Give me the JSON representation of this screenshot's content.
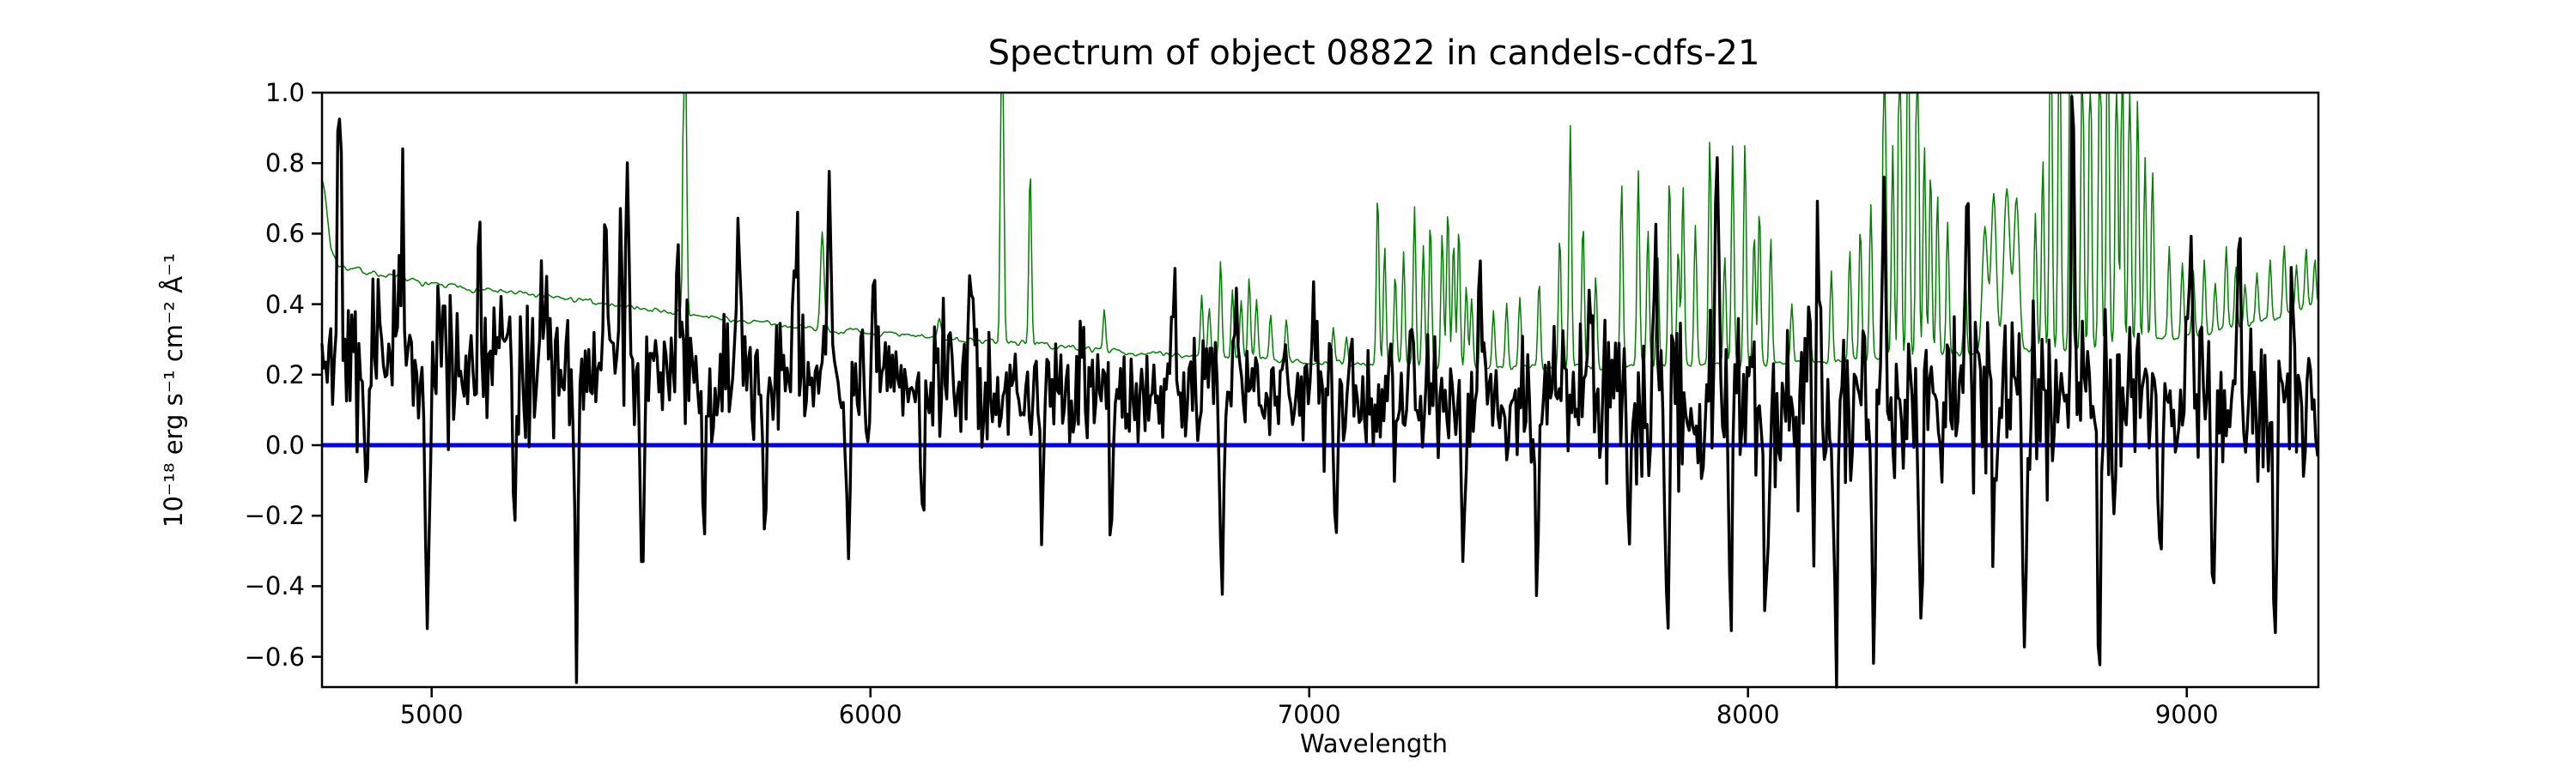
{
  "chart_data": {
    "type": "line",
    "title": "Spectrum of object 08822 in candels-cdfs-21",
    "xlabel": "Wavelength",
    "ylabel": "10⁻¹⁸ erg s⁻¹ cm⁻² Å⁻¹",
    "xlim": [
      4750,
      9300
    ],
    "ylim": [
      -0.686,
      1.0
    ],
    "xticks": [
      5000,
      6000,
      7000,
      8000,
      9000
    ],
    "yticks": [
      1.0,
      0.8,
      0.6,
      0.4,
      0.2,
      0.0,
      -0.2,
      -0.4,
      -0.6
    ],
    "grid": false,
    "legend": "none",
    "background": "#ffffff",
    "axes_color": "#000000",
    "series": [
      {
        "name": "flux-spectrum",
        "color": "#000000",
        "linewidth": 3.4,
        "step": 4,
        "seed": 42,
        "tail_chance": 0.955,
        "tail_gain": 1.9,
        "noise_gain": 1.25,
        "continuum": [
          [
            4750,
            0.27
          ],
          [
            4900,
            0.25
          ],
          [
            5100,
            0.23
          ],
          [
            5350,
            0.215
          ],
          [
            5600,
            0.2
          ],
          [
            5900,
            0.18
          ],
          [
            6200,
            0.165
          ],
          [
            6500,
            0.155
          ],
          [
            6800,
            0.145
          ],
          [
            7100,
            0.14
          ],
          [
            7400,
            0.135
          ],
          [
            7700,
            0.13
          ],
          [
            8000,
            0.125
          ],
          [
            8300,
            0.12
          ],
          [
            8600,
            0.12
          ],
          [
            8900,
            0.115
          ],
          [
            9150,
            0.11
          ],
          [
            9300,
            0.1
          ]
        ],
        "noise_amplitude": [
          [
            4750,
            0.26
          ],
          [
            4900,
            0.25
          ],
          [
            5100,
            0.21
          ],
          [
            5400,
            0.2
          ],
          [
            5700,
            0.17
          ],
          [
            6000,
            0.155
          ],
          [
            6300,
            0.15
          ],
          [
            6600,
            0.15
          ],
          [
            6900,
            0.145
          ],
          [
            7150,
            0.145
          ],
          [
            7350,
            0.155
          ],
          [
            7550,
            0.19
          ],
          [
            7800,
            0.24
          ],
          [
            8050,
            0.23
          ],
          [
            8300,
            0.25
          ],
          [
            8550,
            0.24
          ],
          [
            8800,
            0.25
          ],
          [
            9000,
            0.22
          ],
          [
            9300,
            0.2
          ]
        ],
        "features": [
          [
            4790,
            0.92,
            6
          ],
          [
            4850,
            -0.28,
            4
          ],
          [
            4930,
            0.83,
            5
          ],
          [
            4990,
            -0.62,
            5
          ],
          [
            5110,
            0.54,
            5
          ],
          [
            5190,
            -0.33,
            4
          ],
          [
            5255,
            0.52,
            5
          ],
          [
            5330,
            -0.3,
            4
          ],
          [
            5395,
            0.58,
            5
          ],
          [
            5444,
            0.73,
            5
          ],
          [
            5480,
            -0.36,
            4
          ],
          [
            5560,
            0.52,
            4
          ],
          [
            5620,
            -0.33,
            4
          ],
          [
            5700,
            0.5,
            5
          ],
          [
            5760,
            -0.31,
            4
          ],
          [
            5830,
            0.59,
            5
          ],
          [
            5905,
            0.61,
            4
          ],
          [
            5950,
            -0.28,
            4
          ],
          [
            6010,
            0.45,
            4
          ],
          [
            6120,
            -0.27,
            4
          ],
          [
            6230,
            0.52,
            4
          ],
          [
            6390,
            -0.25,
            4
          ],
          [
            6480,
            0.45,
            4
          ],
          [
            6550,
            -0.27,
            4
          ],
          [
            6690,
            0.52,
            4
          ],
          [
            6800,
            -0.33,
            4
          ],
          [
            6835,
            0.51,
            4
          ],
          [
            7010,
            0.45,
            4
          ],
          [
            7060,
            -0.26,
            4
          ],
          [
            7230,
            0.44,
            4
          ],
          [
            7350,
            -0.26,
            4
          ],
          [
            7390,
            0.5,
            4
          ],
          [
            7520,
            -0.36,
            4
          ],
          [
            7640,
            0.55,
            4
          ],
          [
            7730,
            -0.4,
            4
          ],
          [
            7788,
            0.72,
            4
          ],
          [
            7815,
            -0.52,
            4
          ],
          [
            7930,
            0.78,
            5
          ],
          [
            7960,
            -0.49,
            4
          ],
          [
            8040,
            -0.42,
            4
          ],
          [
            8160,
            0.53,
            4
          ],
          [
            8200,
            -0.53,
            5
          ],
          [
            8285,
            -0.5,
            4
          ],
          [
            8310,
            0.63,
            4
          ],
          [
            8395,
            -0.52,
            4
          ],
          [
            8500,
            0.7,
            5
          ],
          [
            8560,
            -0.35,
            4
          ],
          [
            8630,
            -0.52,
            5
          ],
          [
            8740,
            0.88,
            5
          ],
          [
            8800,
            -0.5,
            4
          ],
          [
            8940,
            -0.38,
            4
          ],
          [
            9010,
            0.6,
            4
          ],
          [
            9060,
            -0.46,
            4
          ],
          [
            9120,
            0.52,
            4
          ],
          [
            9200,
            -0.36,
            4
          ],
          [
            9240,
            0.46,
            4
          ]
        ]
      },
      {
        "name": "noise-sky-spectrum",
        "color": "#008000",
        "linewidth": 1.5,
        "step": 2.5,
        "seed": 7,
        "wiggle": 0.03,
        "baseline": [
          [
            4750,
            0.77
          ],
          [
            4758,
            0.7
          ],
          [
            4770,
            0.56
          ],
          [
            4788,
            0.51
          ],
          [
            4820,
            0.5
          ],
          [
            4900,
            0.48
          ],
          [
            5000,
            0.455
          ],
          [
            5150,
            0.437
          ],
          [
            5300,
            0.415
          ],
          [
            5450,
            0.394
          ],
          [
            5600,
            0.368
          ],
          [
            5750,
            0.346
          ],
          [
            5900,
            0.328
          ],
          [
            6050,
            0.312
          ],
          [
            6200,
            0.3
          ],
          [
            6350,
            0.288
          ],
          [
            6500,
            0.272
          ],
          [
            6650,
            0.258
          ],
          [
            6800,
            0.248
          ],
          [
            6950,
            0.238
          ],
          [
            7100,
            0.229
          ],
          [
            7250,
            0.223
          ],
          [
            7400,
            0.219
          ],
          [
            7550,
            0.219
          ],
          [
            7700,
            0.225
          ],
          [
            7850,
            0.228
          ],
          [
            8000,
            0.229
          ],
          [
            8150,
            0.236
          ],
          [
            8300,
            0.246
          ],
          [
            8450,
            0.256
          ],
          [
            8600,
            0.266
          ],
          [
            8750,
            0.276
          ],
          [
            8900,
            0.29
          ],
          [
            9050,
            0.316
          ],
          [
            9200,
            0.362
          ],
          [
            9300,
            0.4
          ]
        ],
        "spikes": [
          [
            5577,
            1.9,
            3
          ],
          [
            5890,
            0.61,
            4
          ],
          [
            6157,
            0.36,
            4
          ],
          [
            6300,
            1.8,
            3
          ],
          [
            6364,
            0.79,
            3
          ],
          [
            6533,
            0.39,
            3
          ],
          [
            6755,
            0.43,
            3
          ],
          [
            6772,
            0.39,
            3
          ],
          [
            6798,
            0.52,
            3
          ],
          [
            6825,
            0.45,
            3
          ],
          [
            6845,
            0.41,
            3
          ],
          [
            6863,
            0.47,
            3
          ],
          [
            6880,
            0.41,
            3
          ],
          [
            6912,
            0.37,
            3
          ],
          [
            6948,
            0.35,
            3
          ],
          [
            7055,
            0.33,
            3
          ],
          [
            7085,
            0.31,
            3
          ],
          [
            7156,
            0.72,
            3
          ],
          [
            7172,
            0.56,
            3
          ],
          [
            7196,
            0.48,
            3
          ],
          [
            7215,
            0.55,
            3
          ],
          [
            7240,
            0.68,
            3
          ],
          [
            7260,
            0.56,
            3
          ],
          [
            7276,
            0.63,
            3
          ],
          [
            7303,
            0.6,
            3
          ],
          [
            7316,
            0.67,
            3
          ],
          [
            7329,
            0.58,
            3
          ],
          [
            7341,
            0.62,
            3
          ],
          [
            7358,
            0.46,
            3
          ],
          [
            7370,
            0.41,
            3
          ],
          [
            7392,
            0.45,
            3
          ],
          [
            7420,
            0.38,
            3
          ],
          [
            7450,
            0.4,
            3
          ],
          [
            7480,
            0.42,
            3
          ],
          [
            7524,
            0.46,
            3
          ],
          [
            7571,
            0.6,
            3
          ],
          [
            7595,
            0.91,
            3
          ],
          [
            7624,
            0.63,
            3
          ],
          [
            7653,
            0.48,
            3
          ],
          [
            7712,
            0.74,
            3
          ],
          [
            7750,
            0.78,
            3
          ],
          [
            7772,
            0.61,
            3
          ],
          [
            7794,
            0.55,
            3
          ],
          [
            7821,
            0.76,
            3
          ],
          [
            7841,
            0.56,
            3
          ],
          [
            7852,
            0.74,
            3
          ],
          [
            7880,
            0.62,
            3
          ],
          [
            7913,
            0.87,
            3
          ],
          [
            7947,
            0.53,
            3
          ],
          [
            7965,
            0.85,
            3
          ],
          [
            7993,
            0.86,
            3
          ],
          [
            8014,
            0.6,
            3
          ],
          [
            8026,
            0.67,
            3
          ],
          [
            8052,
            0.59,
            3
          ],
          [
            8100,
            0.4,
            3
          ],
          [
            8140,
            0.39,
            3
          ],
          [
            8190,
            0.5,
            3
          ],
          [
            8232,
            0.55,
            3
          ],
          [
            8256,
            0.62,
            3
          ],
          [
            8280,
            0.68,
            3
          ],
          [
            8311,
            1.5,
            3
          ],
          [
            8330,
            0.85,
            3
          ],
          [
            8346,
            1.6,
            3
          ],
          [
            8365,
            1.5,
            3
          ],
          [
            8386,
            1.55,
            3
          ],
          [
            8402,
            0.85,
            3
          ],
          [
            8416,
            0.78,
            3
          ],
          [
            8432,
            0.71,
            3
          ],
          [
            8455,
            0.63,
            3
          ],
          [
            8495,
            0.51,
            3
          ],
          [
            8540,
            0.62,
            6
          ],
          [
            8560,
            0.71,
            6
          ],
          [
            8590,
            0.73,
            7
          ],
          [
            8612,
            0.7,
            6
          ],
          [
            8655,
            0.66,
            3
          ],
          [
            8672,
            0.82,
            3
          ],
          [
            8690,
            1.3,
            3
          ],
          [
            8710,
            1.35,
            3
          ],
          [
            8735,
            1.4,
            3
          ],
          [
            8762,
            1.3,
            3
          ],
          [
            8780,
            1.2,
            3
          ],
          [
            8802,
            1.4,
            3
          ],
          [
            8820,
            1.3,
            3
          ],
          [
            8840,
            1.15,
            3
          ],
          [
            8853,
            1.25,
            3
          ],
          [
            8870,
            1.1,
            3
          ],
          [
            8888,
            0.98,
            3
          ],
          [
            8905,
            0.82,
            3
          ],
          [
            8922,
            0.78,
            3
          ],
          [
            8960,
            0.56,
            3
          ],
          [
            8990,
            0.51,
            3
          ],
          [
            9015,
            0.49,
            3
          ],
          [
            9040,
            0.53,
            3
          ],
          [
            9065,
            0.46,
            3
          ],
          [
            9090,
            0.56,
            3
          ],
          [
            9112,
            0.51,
            3
          ],
          [
            9133,
            0.46,
            3
          ],
          [
            9160,
            0.49,
            3
          ],
          [
            9190,
            0.53,
            3
          ],
          [
            9222,
            0.56,
            3
          ],
          [
            9250,
            0.51,
            3
          ],
          [
            9272,
            0.56,
            3
          ],
          [
            9292,
            0.53,
            3
          ]
        ]
      },
      {
        "name": "zero-flux-line",
        "color": "#0000ff",
        "linewidth": 5,
        "y": 0.0
      }
    ],
    "style": {
      "spine_width": 2.5,
      "tick_length": 12,
      "tick_width": 2.5
    }
  }
}
